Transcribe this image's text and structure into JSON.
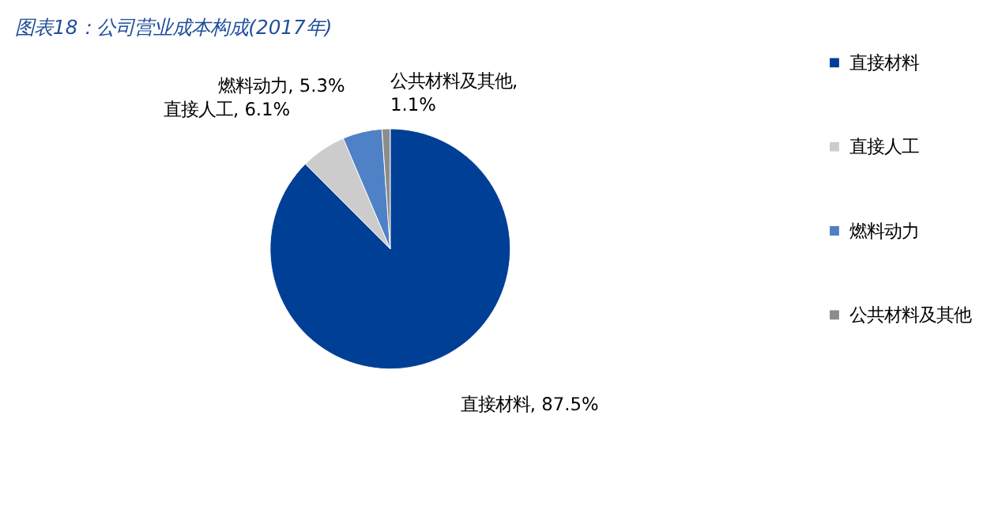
{
  "chart_data": {
    "type": "pie",
    "title": "图表18：公司营业成本构成(2017年)",
    "categories": [
      "直接材料",
      "直接人工",
      "燃料动力",
      "公共材料及其他"
    ],
    "values": [
      87.5,
      6.1,
      5.3,
      1.1
    ],
    "value_labels": [
      "直接材料, 87.5%",
      "直接人工, 6.1%",
      "燃料动力, 5.3%",
      "公共材料及其他, 1.1%"
    ],
    "colors": [
      "#003f96",
      "#cccccc",
      "#4f81c6",
      "#8c8c8c"
    ],
    "legend": "right"
  }
}
